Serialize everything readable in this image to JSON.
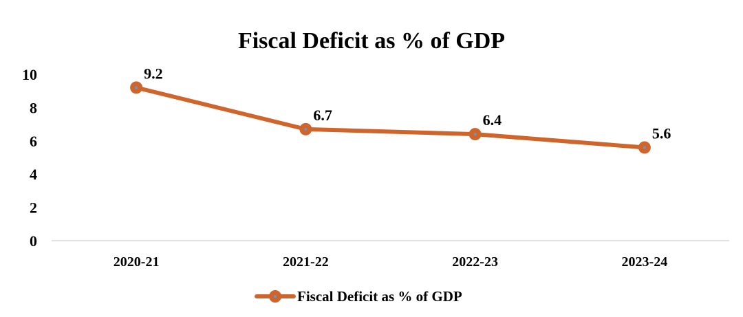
{
  "chart_data": {
    "type": "line",
    "title": "Fiscal Deficit as % of GDP",
    "xlabel": "",
    "ylabel": "",
    "categories": [
      "2020-21",
      "2021-22",
      "2022-23",
      "2023-24"
    ],
    "series": [
      {
        "name": "Fiscal Deficit as % of GDP",
        "values": [
          9.2,
          6.7,
          6.4,
          5.6
        ],
        "data_labels": [
          "9.2",
          "6.7",
          "6.4",
          "5.6"
        ]
      }
    ],
    "ylim": [
      0,
      10
    ],
    "y_ticks": [
      0,
      2,
      4,
      6,
      8,
      10
    ],
    "y_tick_labels": [
      "0",
      "2",
      "4",
      "6",
      "8",
      "10"
    ],
    "grid": false,
    "legend_position": "bottom",
    "colors": {
      "line": "#D0652B",
      "marker_center": "#5B9BD5",
      "axis": "#D9D9D9",
      "text": "#000000"
    }
  }
}
